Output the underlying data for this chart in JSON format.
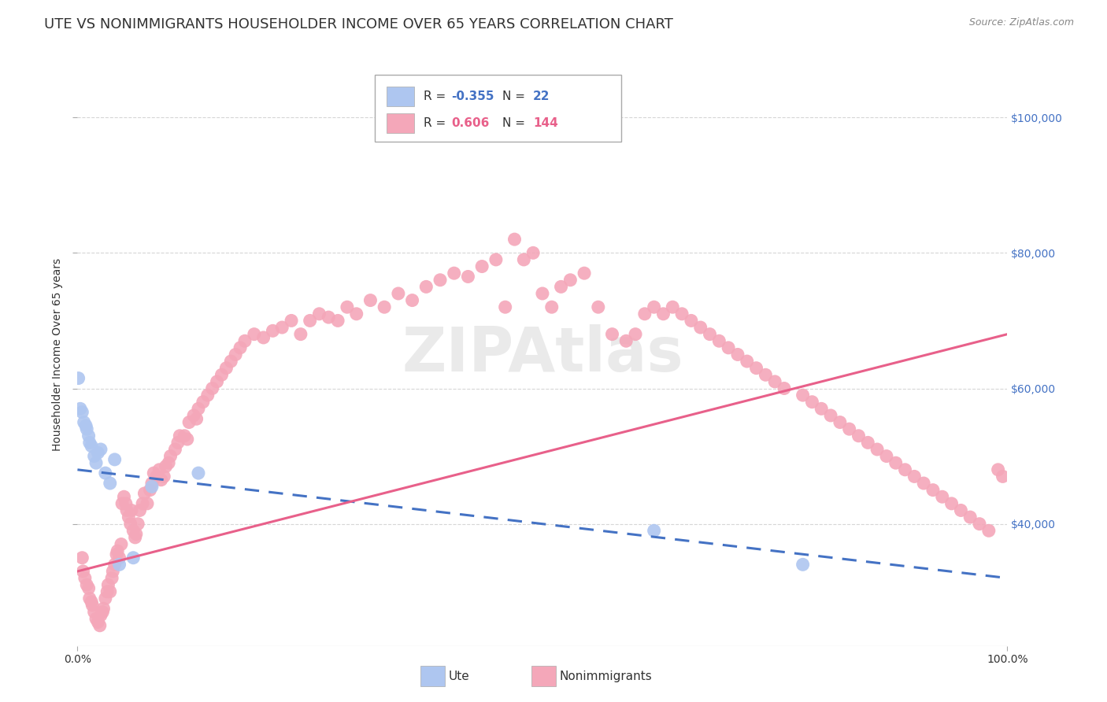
{
  "title": "UTE VS NONIMMIGRANTS HOUSEHOLDER INCOME OVER 65 YEARS CORRELATION CHART",
  "source": "Source: ZipAtlas.com",
  "ylabel": "Householder Income Over 65 years",
  "xlim": [
    0.0,
    1.0
  ],
  "ylim": [
    22000,
    108000
  ],
  "y_tick_values": [
    40000,
    60000,
    80000,
    100000
  ],
  "y_tick_labels": [
    "$40,000",
    "$60,000",
    "$80,000",
    "$100,000"
  ],
  "ute_color": "#aec6f0",
  "nonimm_color": "#f4a7b9",
  "ute_line_color": "#4472c4",
  "nonimm_line_color": "#e8608a",
  "background_color": "#ffffff",
  "grid_color": "#cccccc",
  "title_fontsize": 13,
  "axis_label_fontsize": 10,
  "tick_fontsize": 10,
  "ute_x": [
    0.001,
    0.003,
    0.005,
    0.007,
    0.009,
    0.01,
    0.012,
    0.013,
    0.015,
    0.018,
    0.02,
    0.022,
    0.025,
    0.03,
    0.035,
    0.04,
    0.045,
    0.06,
    0.08,
    0.13,
    0.62,
    0.78
  ],
  "ute_y": [
    61500,
    57000,
    56500,
    55000,
    54500,
    54000,
    53000,
    52000,
    51500,
    50000,
    49000,
    50500,
    51000,
    47500,
    46000,
    49500,
    34000,
    35000,
    45500,
    47500,
    39000,
    34000
  ],
  "nonimm_x": [
    0.005,
    0.006,
    0.008,
    0.01,
    0.012,
    0.013,
    0.015,
    0.016,
    0.018,
    0.02,
    0.022,
    0.024,
    0.025,
    0.027,
    0.028,
    0.03,
    0.032,
    0.033,
    0.035,
    0.037,
    0.038,
    0.04,
    0.042,
    0.043,
    0.045,
    0.047,
    0.048,
    0.05,
    0.052,
    0.053,
    0.055,
    0.057,
    0.058,
    0.06,
    0.062,
    0.063,
    0.065,
    0.067,
    0.07,
    0.072,
    0.075,
    0.078,
    0.08,
    0.082,
    0.085,
    0.088,
    0.09,
    0.093,
    0.095,
    0.098,
    0.1,
    0.105,
    0.108,
    0.11,
    0.115,
    0.118,
    0.12,
    0.125,
    0.128,
    0.13,
    0.135,
    0.14,
    0.145,
    0.15,
    0.155,
    0.16,
    0.165,
    0.17,
    0.175,
    0.18,
    0.19,
    0.2,
    0.21,
    0.22,
    0.23,
    0.24,
    0.25,
    0.26,
    0.27,
    0.28,
    0.29,
    0.3,
    0.315,
    0.33,
    0.345,
    0.36,
    0.375,
    0.39,
    0.405,
    0.42,
    0.435,
    0.45,
    0.46,
    0.47,
    0.48,
    0.49,
    0.5,
    0.51,
    0.52,
    0.53,
    0.545,
    0.56,
    0.575,
    0.59,
    0.6,
    0.61,
    0.62,
    0.63,
    0.64,
    0.65,
    0.66,
    0.67,
    0.68,
    0.69,
    0.7,
    0.71,
    0.72,
    0.73,
    0.74,
    0.75,
    0.76,
    0.78,
    0.79,
    0.8,
    0.81,
    0.82,
    0.83,
    0.84,
    0.85,
    0.86,
    0.87,
    0.88,
    0.89,
    0.9,
    0.91,
    0.92,
    0.93,
    0.94,
    0.95,
    0.96,
    0.97,
    0.98,
    0.99,
    0.995
  ],
  "nonimm_y": [
    35000,
    33000,
    32000,
    31000,
    30500,
    29000,
    28500,
    28000,
    27000,
    26000,
    25500,
    25000,
    26500,
    27000,
    27500,
    29000,
    30000,
    31000,
    30000,
    32000,
    33000,
    34000,
    35500,
    36000,
    35000,
    37000,
    43000,
    44000,
    43000,
    42000,
    41000,
    40000,
    42000,
    39000,
    38000,
    38500,
    40000,
    42000,
    43000,
    44500,
    43000,
    45000,
    46000,
    47500,
    47000,
    48000,
    46500,
    47000,
    48500,
    49000,
    50000,
    51000,
    52000,
    53000,
    53000,
    52500,
    55000,
    56000,
    55500,
    57000,
    58000,
    59000,
    60000,
    61000,
    62000,
    63000,
    64000,
    65000,
    66000,
    67000,
    68000,
    67500,
    68500,
    69000,
    70000,
    68000,
    70000,
    71000,
    70500,
    70000,
    72000,
    71000,
    73000,
    72000,
    74000,
    73000,
    75000,
    76000,
    77000,
    76500,
    78000,
    79000,
    72000,
    82000,
    79000,
    80000,
    74000,
    72000,
    75000,
    76000,
    77000,
    72000,
    68000,
    67000,
    68000,
    71000,
    72000,
    71000,
    72000,
    71000,
    70000,
    69000,
    68000,
    67000,
    66000,
    65000,
    64000,
    63000,
    62000,
    61000,
    60000,
    59000,
    58000,
    57000,
    56000,
    55000,
    54000,
    53000,
    52000,
    51000,
    50000,
    49000,
    48000,
    47000,
    46000,
    45000,
    44000,
    43000,
    42000,
    41000,
    40000,
    39000,
    48000,
    47000
  ]
}
